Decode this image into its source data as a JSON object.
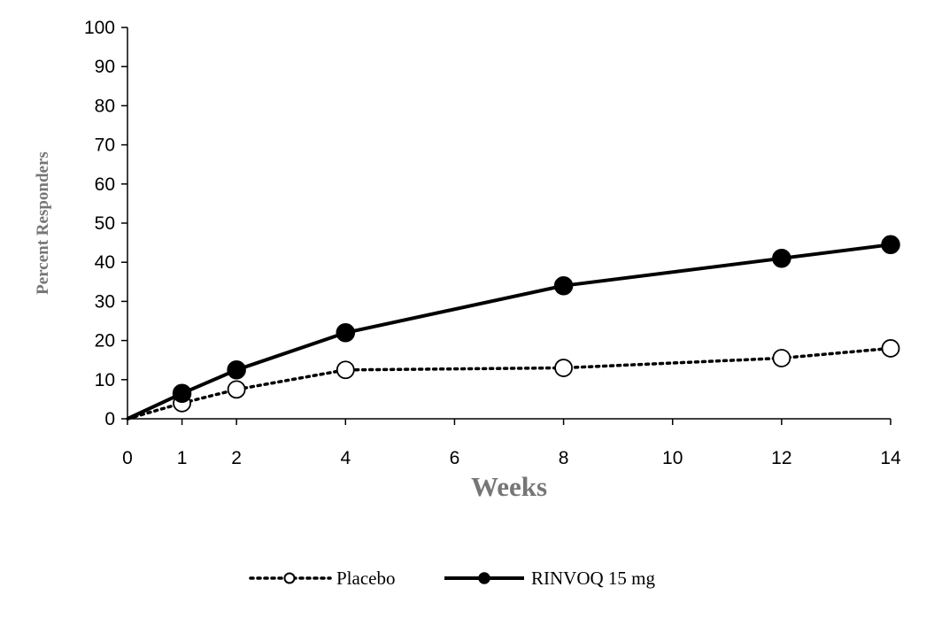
{
  "chart_data": {
    "type": "line",
    "title": "",
    "xlabel": "Weeks",
    "ylabel": "Percent Responders",
    "xlim": [
      0,
      14
    ],
    "ylim": [
      0,
      100
    ],
    "x_ticks": [
      0,
      1,
      2,
      4,
      6,
      8,
      10,
      12,
      14
    ],
    "y_ticks": [
      0,
      10,
      20,
      30,
      40,
      50,
      60,
      70,
      80,
      90,
      100
    ],
    "grid": false,
    "legend_position": "bottom",
    "series": [
      {
        "name": "Placebo",
        "line_style": "dotted",
        "marker": "open-circle",
        "color": "#000000",
        "points": [
          {
            "x": 0,
            "y": 0,
            "marker": false
          },
          {
            "x": 1,
            "y": 4,
            "marker": true
          },
          {
            "x": 2,
            "y": 7.5,
            "marker": true
          },
          {
            "x": 4,
            "y": 12.5,
            "marker": true
          },
          {
            "x": 8,
            "y": 13,
            "marker": true
          },
          {
            "x": 12,
            "y": 15.5,
            "marker": true
          },
          {
            "x": 14,
            "y": 18,
            "marker": true
          }
        ]
      },
      {
        "name": "RINVOQ 15 mg",
        "line_style": "solid",
        "marker": "filled-circle",
        "color": "#000000",
        "points": [
          {
            "x": 0,
            "y": 0,
            "marker": false
          },
          {
            "x": 1,
            "y": 6.5,
            "marker": true
          },
          {
            "x": 2,
            "y": 12.5,
            "marker": true
          },
          {
            "x": 4,
            "y": 22,
            "marker": true
          },
          {
            "x": 8,
            "y": 34,
            "marker": true
          },
          {
            "x": 12,
            "y": 41,
            "marker": true
          },
          {
            "x": 14,
            "y": 44.5,
            "marker": true
          }
        ]
      }
    ]
  }
}
